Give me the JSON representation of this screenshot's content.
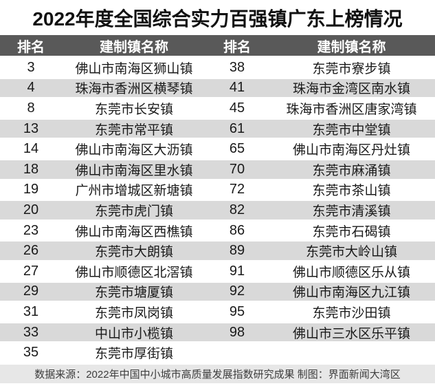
{
  "chart_data": {
    "type": "table",
    "title": "2022年度全国综合实力百强镇广东上榜情况",
    "columns": [
      "排名",
      "建制镇名称",
      "排名",
      "建制镇名称"
    ],
    "rows": [
      [
        "3",
        "佛山市南海区狮山镇",
        "38",
        "东莞市寮步镇"
      ],
      [
        "4",
        "珠海市香洲区横琴镇",
        "41",
        "珠海市金湾区南水镇"
      ],
      [
        "8",
        "东莞市长安镇",
        "45",
        "珠海市香洲区唐家湾镇"
      ],
      [
        "13",
        "东莞市常平镇",
        "61",
        "东莞市中堂镇"
      ],
      [
        "14",
        "佛山市南海区大沥镇",
        "65",
        "佛山市南海区丹灶镇"
      ],
      [
        "18",
        "佛山市南海区里水镇",
        "70",
        "东莞市麻涌镇"
      ],
      [
        "19",
        "广州市增城区新塘镇",
        "72",
        "东莞市茶山镇"
      ],
      [
        "20",
        "东莞市虎门镇",
        "82",
        "东莞市清溪镇"
      ],
      [
        "23",
        "佛山市南海区西樵镇",
        "86",
        "东莞市石碣镇"
      ],
      [
        "26",
        "东莞市大朗镇",
        "89",
        "东莞市大岭山镇"
      ],
      [
        "27",
        "佛山市顺德区北滘镇",
        "91",
        "佛山市顺德区乐从镇"
      ],
      [
        "29",
        "东莞市塘厦镇",
        "92",
        "佛山市南海区九江镇"
      ],
      [
        "31",
        "东莞市凤岗镇",
        "95",
        "东莞市沙田镇"
      ],
      [
        "33",
        "中山市小榄镇",
        "98",
        "佛山市三水区乐平镇"
      ],
      [
        "35",
        "东莞市厚街镇",
        "",
        ""
      ]
    ],
    "source_note": "数据来源：2022年中国中小城市高质量发展指数研究成果 制图：界面新闻大湾区",
    "layout": {
      "legend": "none",
      "grid": "off",
      "banding": "alternating rows white / gray"
    }
  },
  "colors": {
    "header_bg": "#595959",
    "header_text": "#ffffff",
    "row_alt_bg": "#d9d9d9",
    "footer_bg": "#e7e7e7",
    "title_text": "#111111",
    "body_text": "#1a1a1a"
  }
}
